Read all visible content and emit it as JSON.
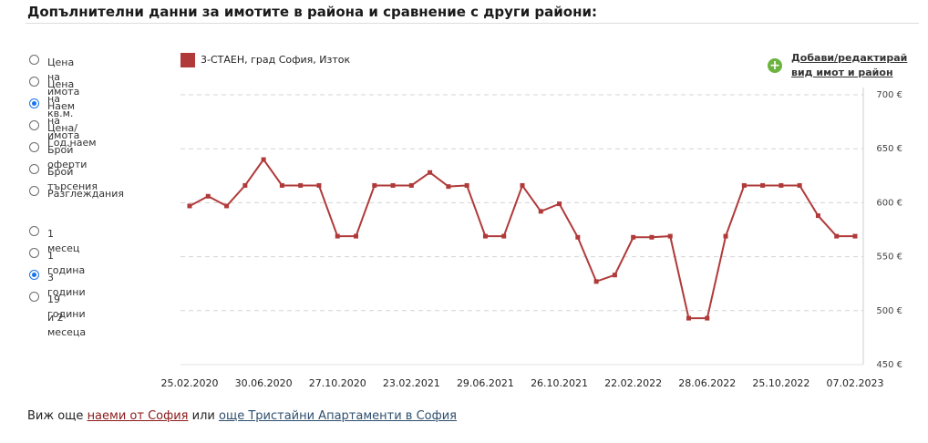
{
  "page": {
    "title": "Допълнителни данни за имотите в района и сравнение с други райони:"
  },
  "metric_options": [
    {
      "label": "Цена на имота",
      "checked": false
    },
    {
      "label": "Цена на кв.м.",
      "checked": false
    },
    {
      "label": "Наем на имота",
      "checked": true
    },
    {
      "label": "Цена/Год.наем",
      "checked": false
    },
    {
      "label": "Брой оферти",
      "checked": false
    },
    {
      "label": "Брой търсения",
      "checked": false
    },
    {
      "label": "Разглеждания",
      "checked": false
    }
  ],
  "period_options": [
    {
      "label": "1 месец",
      "checked": false
    },
    {
      "label": "1 година",
      "checked": false
    },
    {
      "label": "3 години",
      "checked": true
    },
    {
      "label": "19 години",
      "label2": "и 2 месеца",
      "checked": false
    }
  ],
  "add_link": {
    "line1": "Добави/редактирай",
    "line2": "вид имот и район",
    "icon": "plus-circle-icon"
  },
  "footer": {
    "prefix": "Виж още",
    "link1": "наеми от София",
    "middle": "или",
    "link2": "още Тристайни Апартаменти в София"
  },
  "colors": {
    "series": "#b03a3a",
    "link_red": "#8b1a1a",
    "link_blue": "#2f4f6f",
    "plus": "#6cb33f",
    "radio_checked": "#1a73e8"
  },
  "chart_data": {
    "type": "line",
    "series": [
      {
        "name": "3-СТАЕН, град София, Изток",
        "color": "#b03a3a",
        "values": [
          597,
          606,
          597,
          616,
          640,
          616,
          616,
          616,
          569,
          569,
          616,
          616,
          616,
          628,
          615,
          616,
          569,
          569,
          616,
          592,
          599,
          568,
          527,
          533,
          568,
          568,
          569,
          493,
          493,
          569,
          616,
          616,
          616,
          616,
          588,
          569,
          569
        ]
      }
    ],
    "x_tick_labels": [
      "25.02.2020",
      "30.06.2020",
      "27.10.2020",
      "23.02.2021",
      "29.06.2021",
      "26.10.2021",
      "22.02.2022",
      "28.06.2022",
      "25.10.2022",
      "07.02.2023"
    ],
    "y_tick_labels": [
      "700 €",
      "650 €",
      "600 €",
      "550 €",
      "500 €",
      "450 €"
    ],
    "y_ticks": [
      700,
      650,
      600,
      550,
      500,
      450
    ],
    "ylim": [
      450,
      700
    ],
    "grid": true,
    "legend_position": "top-left"
  }
}
